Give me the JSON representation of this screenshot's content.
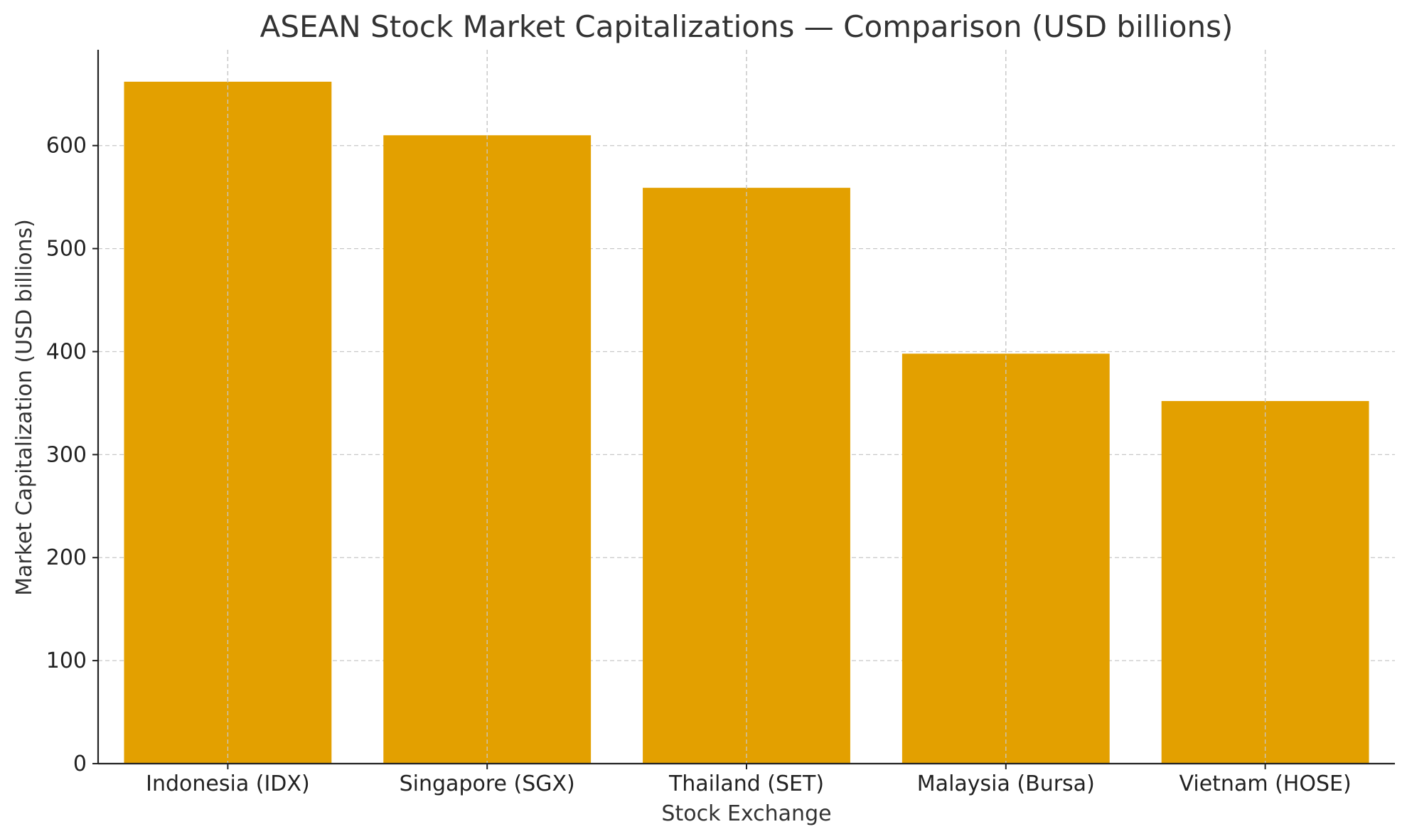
{
  "chart_data": {
    "type": "bar",
    "title": "ASEAN Stock Market Capitalizations — Comparison (USD billions)",
    "xlabel": "Stock Exchange",
    "ylabel": "Market Capitalization (USD billions)",
    "categories": [
      "Indonesia (IDX)",
      "Singapore (SGX)",
      "Thailand (SET)",
      "Malaysia (Bursa)",
      "Vietnam (HOSE)"
    ],
    "values": [
      662,
      610,
      559,
      398,
      352
    ],
    "ylim": [
      0,
      693
    ],
    "yticks": [
      0,
      100,
      200,
      300,
      400,
      500,
      600
    ],
    "grid": true,
    "bar_color": "#E3A000"
  }
}
